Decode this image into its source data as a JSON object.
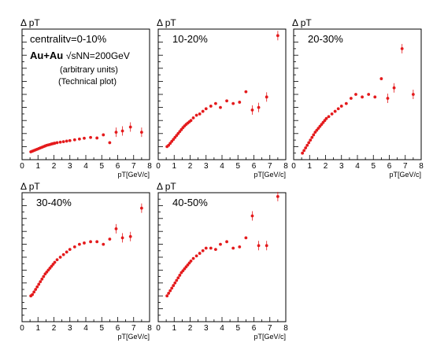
{
  "chart_data": [
    {
      "type": "scatter",
      "label": "centralitv=0-10%",
      "ylabel": "Δ pT",
      "xlabel": "pT[GeV/c]",
      "xlim": [
        0,
        8
      ],
      "ylim": [
        0,
        1
      ],
      "x_ticks": [
        "0",
        "1",
        "2",
        "3",
        "4",
        "5",
        "6",
        "7",
        "8"
      ],
      "info": {
        "system": "Au+Au",
        "energy": "√sNN=200GeV",
        "units_note": "(arbitrary units)",
        "plot_note": "(Technical plot)"
      },
      "series": [
        {
          "color": "#e41a1c",
          "x": [
            0.55,
            0.65,
            0.75,
            0.85,
            0.95,
            1.05,
            1.15,
            1.25,
            1.35,
            1.45,
            1.55,
            1.65,
            1.75,
            1.85,
            1.95,
            2.05,
            2.2,
            2.4,
            2.6,
            2.8,
            3.0,
            3.3,
            3.6,
            3.9,
            4.3,
            4.7,
            5.1,
            5.5,
            5.9,
            6.3,
            6.8,
            7.5
          ],
          "y": [
            0.06,
            0.065,
            0.07,
            0.075,
            0.08,
            0.085,
            0.09,
            0.095,
            0.1,
            0.105,
            0.11,
            0.113,
            0.116,
            0.12,
            0.123,
            0.126,
            0.13,
            0.134,
            0.138,
            0.142,
            0.146,
            0.152,
            0.158,
            0.164,
            0.17,
            0.166,
            0.19,
            0.13,
            0.21,
            0.22,
            0.25,
            0.21
          ]
        }
      ]
    },
    {
      "type": "scatter",
      "label": "10-20%",
      "ylabel": "Δ pT",
      "xlabel": "pT[GeV/c]",
      "xlim": [
        0,
        8
      ],
      "ylim": [
        0,
        1
      ],
      "x_ticks": [
        "0",
        "1",
        "2",
        "3",
        "4",
        "5",
        "6",
        "7",
        "8"
      ],
      "series": [
        {
          "color": "#e41a1c",
          "x": [
            0.55,
            0.65,
            0.75,
            0.85,
            0.95,
            1.05,
            1.15,
            1.25,
            1.35,
            1.45,
            1.55,
            1.65,
            1.75,
            1.85,
            1.95,
            2.05,
            2.2,
            2.4,
            2.6,
            2.8,
            3.0,
            3.3,
            3.6,
            3.9,
            4.3,
            4.7,
            5.1,
            5.5,
            5.9,
            6.3,
            6.8,
            7.5
          ],
          "y": [
            0.1,
            0.11,
            0.125,
            0.14,
            0.155,
            0.17,
            0.185,
            0.2,
            0.215,
            0.23,
            0.245,
            0.258,
            0.27,
            0.28,
            0.29,
            0.3,
            0.32,
            0.34,
            0.35,
            0.37,
            0.39,
            0.41,
            0.43,
            0.4,
            0.45,
            0.43,
            0.44,
            0.52,
            0.38,
            0.4,
            0.48,
            0.95
          ]
        }
      ]
    },
    {
      "type": "scatter",
      "label": "20-30%",
      "ylabel": "Δ pT",
      "xlabel": "pT[GeV/c]",
      "xlim": [
        0,
        8
      ],
      "ylim": [
        0,
        1
      ],
      "x_ticks": [
        "0",
        "1",
        "2",
        "3",
        "4",
        "5",
        "6",
        "7",
        "8"
      ],
      "series": [
        {
          "color": "#e41a1c",
          "x": [
            0.55,
            0.65,
            0.75,
            0.85,
            0.95,
            1.05,
            1.15,
            1.25,
            1.35,
            1.45,
            1.55,
            1.65,
            1.75,
            1.85,
            1.95,
            2.05,
            2.2,
            2.4,
            2.6,
            2.8,
            3.0,
            3.3,
            3.6,
            3.9,
            4.3,
            4.7,
            5.1,
            5.5,
            5.9,
            6.3,
            6.8,
            7.5
          ],
          "y": [
            0.05,
            0.07,
            0.09,
            0.11,
            0.13,
            0.15,
            0.17,
            0.19,
            0.21,
            0.225,
            0.24,
            0.255,
            0.27,
            0.285,
            0.3,
            0.315,
            0.33,
            0.35,
            0.37,
            0.39,
            0.41,
            0.43,
            0.47,
            0.5,
            0.48,
            0.5,
            0.48,
            0.62,
            0.47,
            0.55,
            0.85,
            0.5
          ]
        }
      ]
    },
    {
      "type": "scatter",
      "label": "30-40%",
      "ylabel": "Δ pT",
      "xlabel": "pT[GeV/c]",
      "xlim": [
        0,
        8
      ],
      "ylim": [
        0,
        1
      ],
      "x_ticks": [
        "0",
        "1",
        "2",
        "3",
        "4",
        "5",
        "6",
        "7",
        "8"
      ],
      "series": [
        {
          "color": "#e41a1c",
          "x": [
            0.55,
            0.65,
            0.75,
            0.85,
            0.95,
            1.05,
            1.15,
            1.25,
            1.35,
            1.45,
            1.55,
            1.65,
            1.75,
            1.85,
            1.95,
            2.05,
            2.2,
            2.4,
            2.6,
            2.8,
            3.0,
            3.3,
            3.6,
            3.9,
            4.3,
            4.7,
            5.1,
            5.5,
            5.9,
            6.3,
            6.8,
            7.5
          ],
          "y": [
            0.2,
            0.21,
            0.23,
            0.25,
            0.27,
            0.29,
            0.31,
            0.33,
            0.35,
            0.37,
            0.385,
            0.4,
            0.415,
            0.43,
            0.445,
            0.46,
            0.48,
            0.5,
            0.52,
            0.54,
            0.56,
            0.58,
            0.6,
            0.61,
            0.62,
            0.62,
            0.6,
            0.64,
            0.72,
            0.65,
            0.66,
            0.88
          ]
        }
      ]
    },
    {
      "type": "scatter",
      "label": "40-50%",
      "ylabel": "Δ pT",
      "xlabel": "pT[GeV/c]",
      "xlim": [
        0,
        8
      ],
      "ylim": [
        0,
        1
      ],
      "x_ticks": [
        "0",
        "1",
        "2",
        "3",
        "4",
        "5",
        "6",
        "7",
        "8"
      ],
      "series": [
        {
          "color": "#e41a1c",
          "x": [
            0.55,
            0.65,
            0.75,
            0.85,
            0.95,
            1.05,
            1.15,
            1.25,
            1.35,
            1.45,
            1.55,
            1.65,
            1.75,
            1.85,
            1.95,
            2.05,
            2.2,
            2.4,
            2.6,
            2.8,
            3.0,
            3.3,
            3.6,
            3.9,
            4.3,
            4.7,
            5.1,
            5.5,
            5.9,
            6.3,
            6.8,
            7.5
          ],
          "y": [
            0.2,
            0.22,
            0.24,
            0.26,
            0.28,
            0.3,
            0.32,
            0.34,
            0.36,
            0.38,
            0.395,
            0.41,
            0.425,
            0.44,
            0.455,
            0.47,
            0.49,
            0.51,
            0.53,
            0.55,
            0.57,
            0.57,
            0.56,
            0.6,
            0.62,
            0.57,
            0.58,
            0.65,
            0.82,
            0.59,
            0.59,
            0.97
          ]
        }
      ]
    }
  ]
}
